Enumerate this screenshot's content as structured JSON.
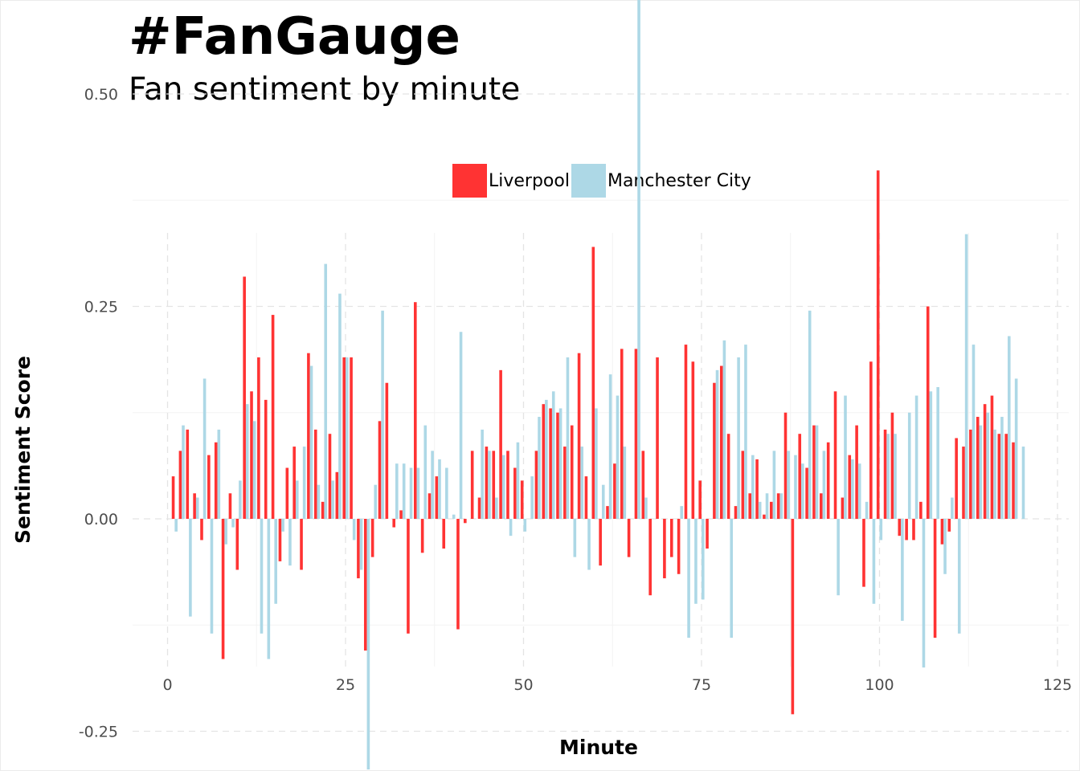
{
  "chart_data": {
    "type": "bar",
    "title": "#FanGauge",
    "subtitle": "Fan sentiment by minute",
    "xlabel": "Minute",
    "ylabel": "Sentiment Score",
    "xlim": [
      -3,
      125
    ],
    "ylim": [
      -0.35,
      0.68
    ],
    "x_ticks": [
      "0",
      "25",
      "50",
      "75",
      "100",
      "125"
    ],
    "y_ticks": [
      "-0.25",
      "0.00",
      "0.25",
      "0.50"
    ],
    "grid": true,
    "legend_position": "top",
    "colors": {
      "Liverpool": "#ff3333",
      "Manchester City": "#add8e6"
    },
    "x": [
      1,
      2,
      3,
      4,
      5,
      6,
      7,
      8,
      9,
      10,
      11,
      12,
      13,
      14,
      15,
      16,
      17,
      18,
      19,
      20,
      21,
      22,
      23,
      24,
      25,
      26,
      27,
      28,
      29,
      30,
      31,
      32,
      33,
      34,
      35,
      36,
      37,
      38,
      39,
      40,
      41,
      42,
      43,
      44,
      45,
      46,
      47,
      48,
      49,
      50,
      51,
      52,
      53,
      54,
      55,
      56,
      57,
      58,
      59,
      60,
      61,
      62,
      63,
      64,
      65,
      66,
      67,
      68,
      69,
      70,
      71,
      72,
      73,
      74,
      75,
      76,
      77,
      78,
      79,
      80,
      81,
      82,
      83,
      84,
      85,
      86,
      87,
      88,
      89,
      90,
      91,
      92,
      93,
      94,
      95,
      96,
      97,
      98,
      99,
      100,
      101,
      102,
      103,
      104,
      105,
      106,
      107,
      108,
      109,
      110,
      111,
      112,
      113,
      114,
      115,
      116,
      117,
      118,
      119,
      120
    ],
    "series": [
      {
        "name": "Liverpool",
        "values": [
          0.05,
          0.08,
          0.105,
          0.03,
          -0.025,
          0.075,
          0.09,
          -0.165,
          0.03,
          -0.06,
          0.285,
          0.15,
          0.19,
          0.14,
          0.24,
          -0.05,
          0.06,
          0.085,
          -0.06,
          0.195,
          0.105,
          0.02,
          0.1,
          0.055,
          0.19,
          0.19,
          -0.07,
          -0.155,
          -0.045,
          0.115,
          0.16,
          -0.01,
          0.01,
          -0.135,
          0.255,
          -0.04,
          0.03,
          0.05,
          -0.035,
          0,
          -0.13,
          -0.005,
          0.08,
          0.025,
          0.085,
          0.08,
          0.175,
          0.08,
          0.06,
          0.045,
          0,
          0.08,
          0.135,
          0.13,
          0.125,
          0.085,
          0.11,
          0.195,
          0.05,
          0.32,
          -0.055,
          0.015,
          0.065,
          0.2,
          -0.045,
          0.2,
          0.08,
          -0.09,
          0.19,
          -0.07,
          -0.045,
          -0.065,
          0.205,
          0.185,
          0.045,
          -0.035,
          0.16,
          0.18,
          0.1,
          0.015,
          0.08,
          0.03,
          0.07,
          0.005,
          0.02,
          0.03,
          0.125,
          -0.23,
          0.1,
          0.06,
          0.11,
          0.03,
          0.09,
          0.15,
          0.025,
          0.075,
          0.11,
          -0.08,
          0.185,
          0.41,
          0.105,
          0.125,
          -0.02,
          -0.025,
          -0.025,
          0.02,
          0.25,
          -0.14,
          -0.03,
          -0.015,
          0.095,
          0.085,
          0.105,
          0.12,
          0.135,
          0.145,
          0.1,
          0.1,
          0.09,
          0
        ]
      },
      {
        "name": "Manchester City",
        "values": [
          -0.015,
          0.11,
          -0.115,
          0.025,
          0.165,
          -0.135,
          0.105,
          -0.03,
          -0.01,
          0.045,
          0.135,
          0.115,
          -0.135,
          -0.165,
          -0.1,
          -0.015,
          -0.055,
          0.045,
          0.085,
          0.18,
          0.04,
          0.3,
          0.045,
          0.265,
          0.19,
          -0.025,
          -0.06,
          -0.295,
          0.04,
          0.245,
          0,
          0.065,
          0.065,
          0.06,
          0.06,
          0.11,
          0.08,
          0.07,
          0.06,
          0.005,
          0.22,
          0,
          0,
          0.105,
          0.08,
          0.025,
          0.075,
          -0.02,
          0.09,
          -0.015,
          0.05,
          0.12,
          0.14,
          0.15,
          0.13,
          0.19,
          -0.045,
          0.085,
          -0.06,
          0.13,
          0.04,
          0.17,
          0.145,
          0.085,
          0,
          0.62,
          0.025,
          0,
          0,
          0,
          0,
          0.015,
          -0.14,
          -0.1,
          -0.095,
          0,
          0.175,
          0.21,
          -0.14,
          0.19,
          0.205,
          0.075,
          0.02,
          0.03,
          0.08,
          0.03,
          0.08,
          0.075,
          0.065,
          0.245,
          0.11,
          0.08,
          0,
          -0.09,
          0.145,
          0.07,
          0.065,
          0.02,
          -0.1,
          -0.025,
          0.1,
          0.1,
          -0.12,
          0.125,
          0.145,
          -0.175,
          0.15,
          0.155,
          -0.065,
          0.025,
          -0.135,
          0.335,
          0.205,
          0.11,
          0.125,
          0.105,
          0.12,
          0.215,
          0.165,
          0.085
        ]
      }
    ]
  }
}
